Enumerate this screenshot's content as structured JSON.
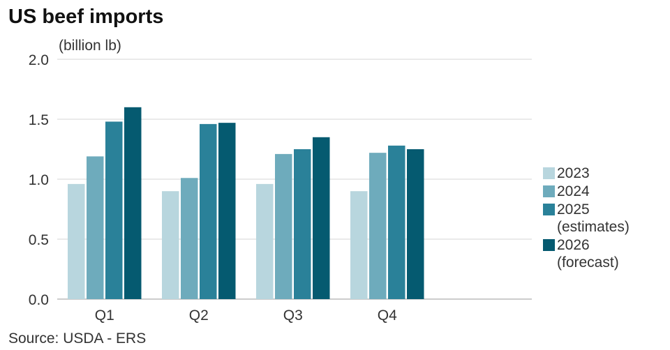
{
  "chart_data": {
    "type": "bar",
    "title": "US beef imports",
    "ylabel": "(billion lb)",
    "source": "Source: USDA - ERS",
    "categories": [
      "Q1",
      "Q2",
      "Q3",
      "Q4"
    ],
    "ylim": [
      0,
      2.0
    ],
    "yticks": [
      "0.0",
      "0.5",
      "1.0",
      "1.5",
      "2.0"
    ],
    "grid": true,
    "legend_position": "right",
    "series": [
      {
        "name": "2023",
        "sub": "",
        "color": "#b8d6de",
        "values": [
          0.96,
          0.9,
          0.96,
          0.9
        ]
      },
      {
        "name": "2024",
        "sub": "",
        "color": "#6eabbc",
        "values": [
          1.19,
          1.01,
          1.21,
          1.22
        ]
      },
      {
        "name": "2025",
        "sub": "(estimates)",
        "color": "#2a8199",
        "values": [
          1.48,
          1.46,
          1.25,
          1.28
        ]
      },
      {
        "name": "2026",
        "sub": "(forecast)",
        "color": "#055a70",
        "values": [
          1.6,
          1.47,
          1.35,
          1.25
        ]
      }
    ]
  }
}
